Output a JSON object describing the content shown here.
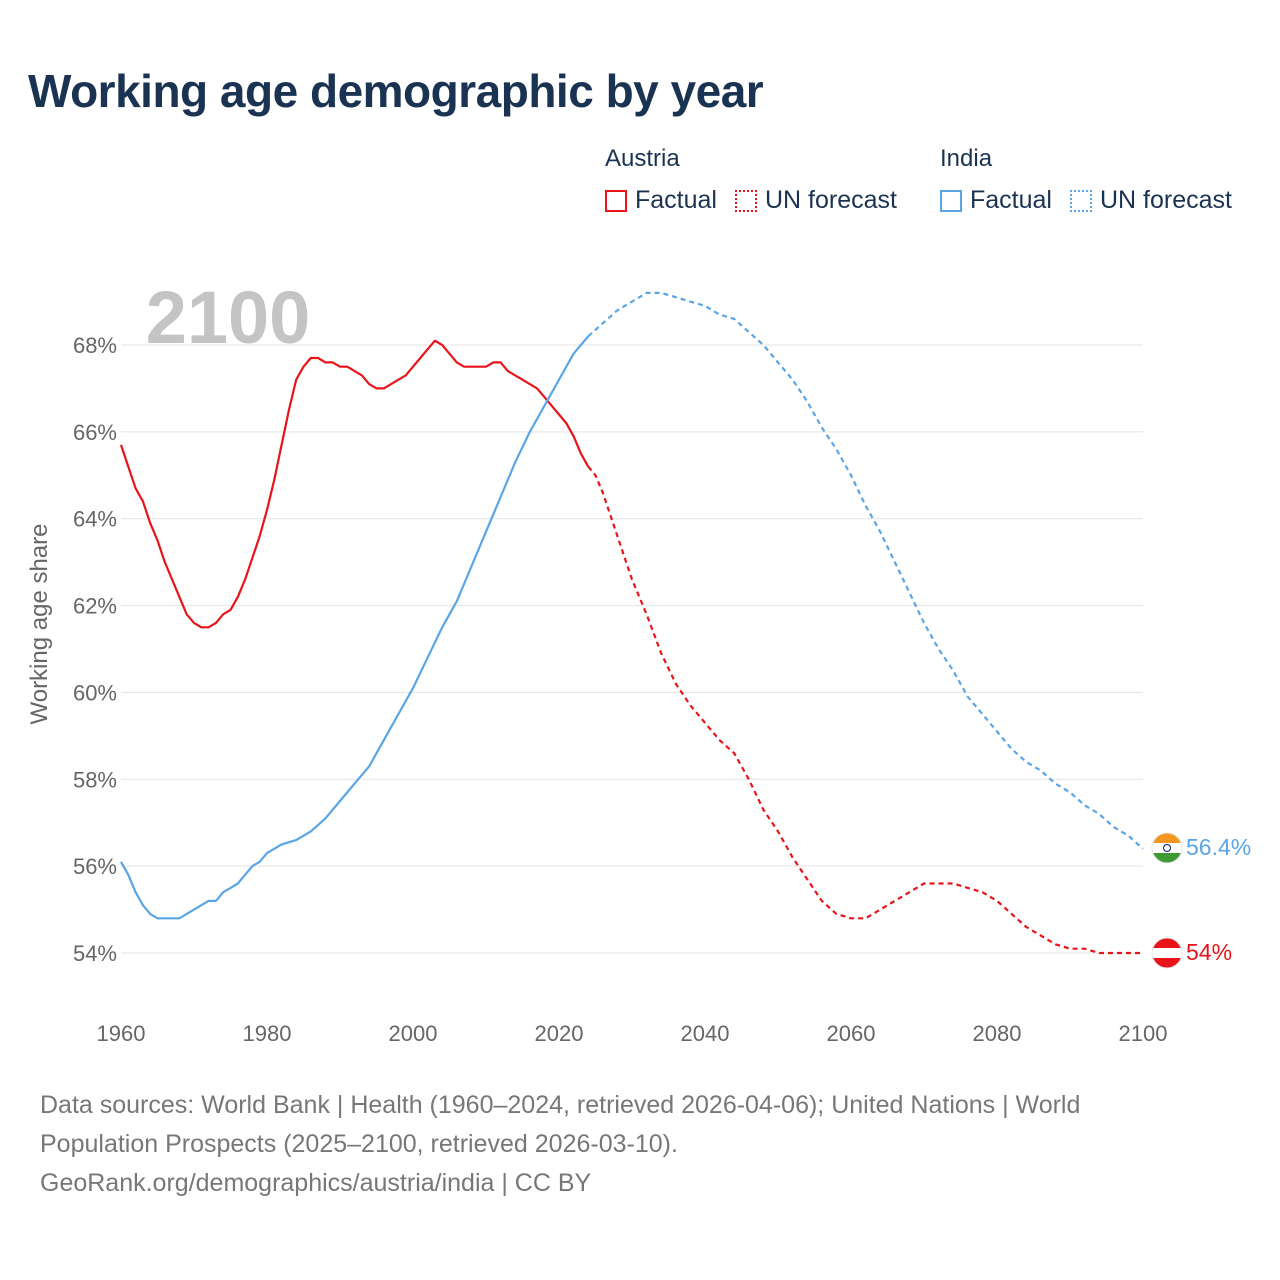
{
  "title": "Working age demographic by year",
  "legend": {
    "groups": [
      {
        "name": "Austria",
        "color": "#e8141a",
        "factual_label": "Factual",
        "forecast_label": "UN forecast"
      },
      {
        "name": "India",
        "color": "#5aa5e6",
        "factual_label": "Factual",
        "forecast_label": "UN forecast"
      }
    ]
  },
  "chart_data": {
    "type": "line",
    "title": "Working age demographic by year",
    "year_overlay": "2100",
    "xlabel": "",
    "ylabel": "Working age share",
    "x_ticks": [
      "1960",
      "1980",
      "2000",
      "2020",
      "2040",
      "2060",
      "2080",
      "2100"
    ],
    "x_tick_values": [
      1960,
      1980,
      2000,
      2020,
      2040,
      2060,
      2080,
      2100
    ],
    "y_ticks": [
      "54%",
      "56%",
      "58%",
      "60%",
      "62%",
      "64%",
      "66%",
      "68%"
    ],
    "y_tick_values": [
      54,
      56,
      58,
      60,
      62,
      64,
      66,
      68
    ],
    "xlim": [
      1960,
      2100
    ],
    "ylim": [
      53,
      69.5
    ],
    "factual_until": 2024,
    "series": [
      {
        "name": "Austria",
        "color": "#e8141a",
        "end_label": "54%",
        "points": [
          [
            1960,
            65.7
          ],
          [
            1961,
            65.2
          ],
          [
            1962,
            64.7
          ],
          [
            1963,
            64.4
          ],
          [
            1964,
            63.9
          ],
          [
            1965,
            63.5
          ],
          [
            1966,
            63.0
          ],
          [
            1967,
            62.6
          ],
          [
            1968,
            62.2
          ],
          [
            1969,
            61.8
          ],
          [
            1970,
            61.6
          ],
          [
            1971,
            61.5
          ],
          [
            1972,
            61.5
          ],
          [
            1973,
            61.6
          ],
          [
            1974,
            61.8
          ],
          [
            1975,
            61.9
          ],
          [
            1976,
            62.2
          ],
          [
            1977,
            62.6
          ],
          [
            1978,
            63.1
          ],
          [
            1979,
            63.6
          ],
          [
            1980,
            64.2
          ],
          [
            1981,
            64.9
          ],
          [
            1982,
            65.7
          ],
          [
            1983,
            66.5
          ],
          [
            1984,
            67.2
          ],
          [
            1985,
            67.5
          ],
          [
            1986,
            67.7
          ],
          [
            1987,
            67.7
          ],
          [
            1988,
            67.6
          ],
          [
            1989,
            67.6
          ],
          [
            1990,
            67.5
          ],
          [
            1991,
            67.5
          ],
          [
            1992,
            67.4
          ],
          [
            1993,
            67.3
          ],
          [
            1994,
            67.1
          ],
          [
            1995,
            67.0
          ],
          [
            1996,
            67.0
          ],
          [
            1997,
            67.1
          ],
          [
            1998,
            67.2
          ],
          [
            1999,
            67.3
          ],
          [
            2000,
            67.5
          ],
          [
            2001,
            67.7
          ],
          [
            2002,
            67.9
          ],
          [
            2003,
            68.1
          ],
          [
            2004,
            68.0
          ],
          [
            2005,
            67.8
          ],
          [
            2006,
            67.6
          ],
          [
            2007,
            67.5
          ],
          [
            2008,
            67.5
          ],
          [
            2009,
            67.5
          ],
          [
            2010,
            67.5
          ],
          [
            2011,
            67.6
          ],
          [
            2012,
            67.6
          ],
          [
            2013,
            67.4
          ],
          [
            2014,
            67.3
          ],
          [
            2015,
            67.2
          ],
          [
            2016,
            67.1
          ],
          [
            2017,
            67.0
          ],
          [
            2018,
            66.8
          ],
          [
            2019,
            66.6
          ],
          [
            2020,
            66.4
          ],
          [
            2021,
            66.2
          ],
          [
            2022,
            65.9
          ],
          [
            2023,
            65.5
          ],
          [
            2024,
            65.2
          ],
          [
            2025,
            65.0
          ],
          [
            2026,
            64.6
          ],
          [
            2027,
            64.1
          ],
          [
            2028,
            63.6
          ],
          [
            2029,
            63.1
          ],
          [
            2030,
            62.6
          ],
          [
            2032,
            61.8
          ],
          [
            2034,
            60.9
          ],
          [
            2036,
            60.2
          ],
          [
            2038,
            59.7
          ],
          [
            2040,
            59.3
          ],
          [
            2042,
            58.9
          ],
          [
            2044,
            58.6
          ],
          [
            2046,
            58.0
          ],
          [
            2048,
            57.3
          ],
          [
            2050,
            56.8
          ],
          [
            2052,
            56.2
          ],
          [
            2054,
            55.7
          ],
          [
            2056,
            55.2
          ],
          [
            2058,
            54.9
          ],
          [
            2060,
            54.8
          ],
          [
            2062,
            54.8
          ],
          [
            2064,
            55.0
          ],
          [
            2066,
            55.2
          ],
          [
            2068,
            55.4
          ],
          [
            2070,
            55.6
          ],
          [
            2072,
            55.6
          ],
          [
            2074,
            55.6
          ],
          [
            2076,
            55.5
          ],
          [
            2078,
            55.4
          ],
          [
            2080,
            55.2
          ],
          [
            2082,
            54.9
          ],
          [
            2084,
            54.6
          ],
          [
            2086,
            54.4
          ],
          [
            2088,
            54.2
          ],
          [
            2090,
            54.1
          ],
          [
            2092,
            54.1
          ],
          [
            2094,
            54.0
          ],
          [
            2096,
            54.0
          ],
          [
            2098,
            54.0
          ],
          [
            2100,
            54.0
          ]
        ]
      },
      {
        "name": "India",
        "color": "#5aa5e6",
        "end_label": "56.4%",
        "points": [
          [
            1960,
            56.1
          ],
          [
            1961,
            55.8
          ],
          [
            1962,
            55.4
          ],
          [
            1963,
            55.1
          ],
          [
            1964,
            54.9
          ],
          [
            1965,
            54.8
          ],
          [
            1966,
            54.8
          ],
          [
            1967,
            54.8
          ],
          [
            1968,
            54.8
          ],
          [
            1969,
            54.9
          ],
          [
            1970,
            55.0
          ],
          [
            1971,
            55.1
          ],
          [
            1972,
            55.2
          ],
          [
            1973,
            55.2
          ],
          [
            1974,
            55.4
          ],
          [
            1975,
            55.5
          ],
          [
            1976,
            55.6
          ],
          [
            1977,
            55.8
          ],
          [
            1978,
            56.0
          ],
          [
            1979,
            56.1
          ],
          [
            1980,
            56.3
          ],
          [
            1982,
            56.5
          ],
          [
            1984,
            56.6
          ],
          [
            1986,
            56.8
          ],
          [
            1988,
            57.1
          ],
          [
            1990,
            57.5
          ],
          [
            1992,
            57.9
          ],
          [
            1994,
            58.3
          ],
          [
            1996,
            58.9
          ],
          [
            1998,
            59.5
          ],
          [
            2000,
            60.1
          ],
          [
            2002,
            60.8
          ],
          [
            2004,
            61.5
          ],
          [
            2006,
            62.1
          ],
          [
            2008,
            62.9
          ],
          [
            2010,
            63.7
          ],
          [
            2012,
            64.5
          ],
          [
            2014,
            65.3
          ],
          [
            2016,
            66.0
          ],
          [
            2018,
            66.6
          ],
          [
            2020,
            67.2
          ],
          [
            2022,
            67.8
          ],
          [
            2024,
            68.2
          ],
          [
            2026,
            68.5
          ],
          [
            2028,
            68.8
          ],
          [
            2030,
            69.0
          ],
          [
            2032,
            69.2
          ],
          [
            2034,
            69.2
          ],
          [
            2036,
            69.1
          ],
          [
            2038,
            69.0
          ],
          [
            2040,
            68.9
          ],
          [
            2042,
            68.7
          ],
          [
            2044,
            68.6
          ],
          [
            2046,
            68.3
          ],
          [
            2048,
            68.0
          ],
          [
            2050,
            67.6
          ],
          [
            2052,
            67.2
          ],
          [
            2054,
            66.7
          ],
          [
            2056,
            66.1
          ],
          [
            2058,
            65.6
          ],
          [
            2060,
            65.0
          ],
          [
            2062,
            64.3
          ],
          [
            2064,
            63.7
          ],
          [
            2066,
            63.0
          ],
          [
            2068,
            62.3
          ],
          [
            2070,
            61.6
          ],
          [
            2072,
            61.0
          ],
          [
            2074,
            60.5
          ],
          [
            2076,
            59.9
          ],
          [
            2078,
            59.5
          ],
          [
            2080,
            59.1
          ],
          [
            2082,
            58.7
          ],
          [
            2084,
            58.4
          ],
          [
            2086,
            58.2
          ],
          [
            2088,
            57.9
          ],
          [
            2090,
            57.7
          ],
          [
            2092,
            57.4
          ],
          [
            2094,
            57.2
          ],
          [
            2096,
            56.9
          ],
          [
            2098,
            56.7
          ],
          [
            2100,
            56.4
          ]
        ]
      }
    ]
  },
  "footer": {
    "line1": "Data sources: World Bank | Health (1960–2024, retrieved 2026-04-06); United Nations | World",
    "line2": "Population Prospects (2025–2100, retrieved 2026-03-10).",
    "line3": "GeoRank.org/demographics/austria/india | CC BY"
  }
}
